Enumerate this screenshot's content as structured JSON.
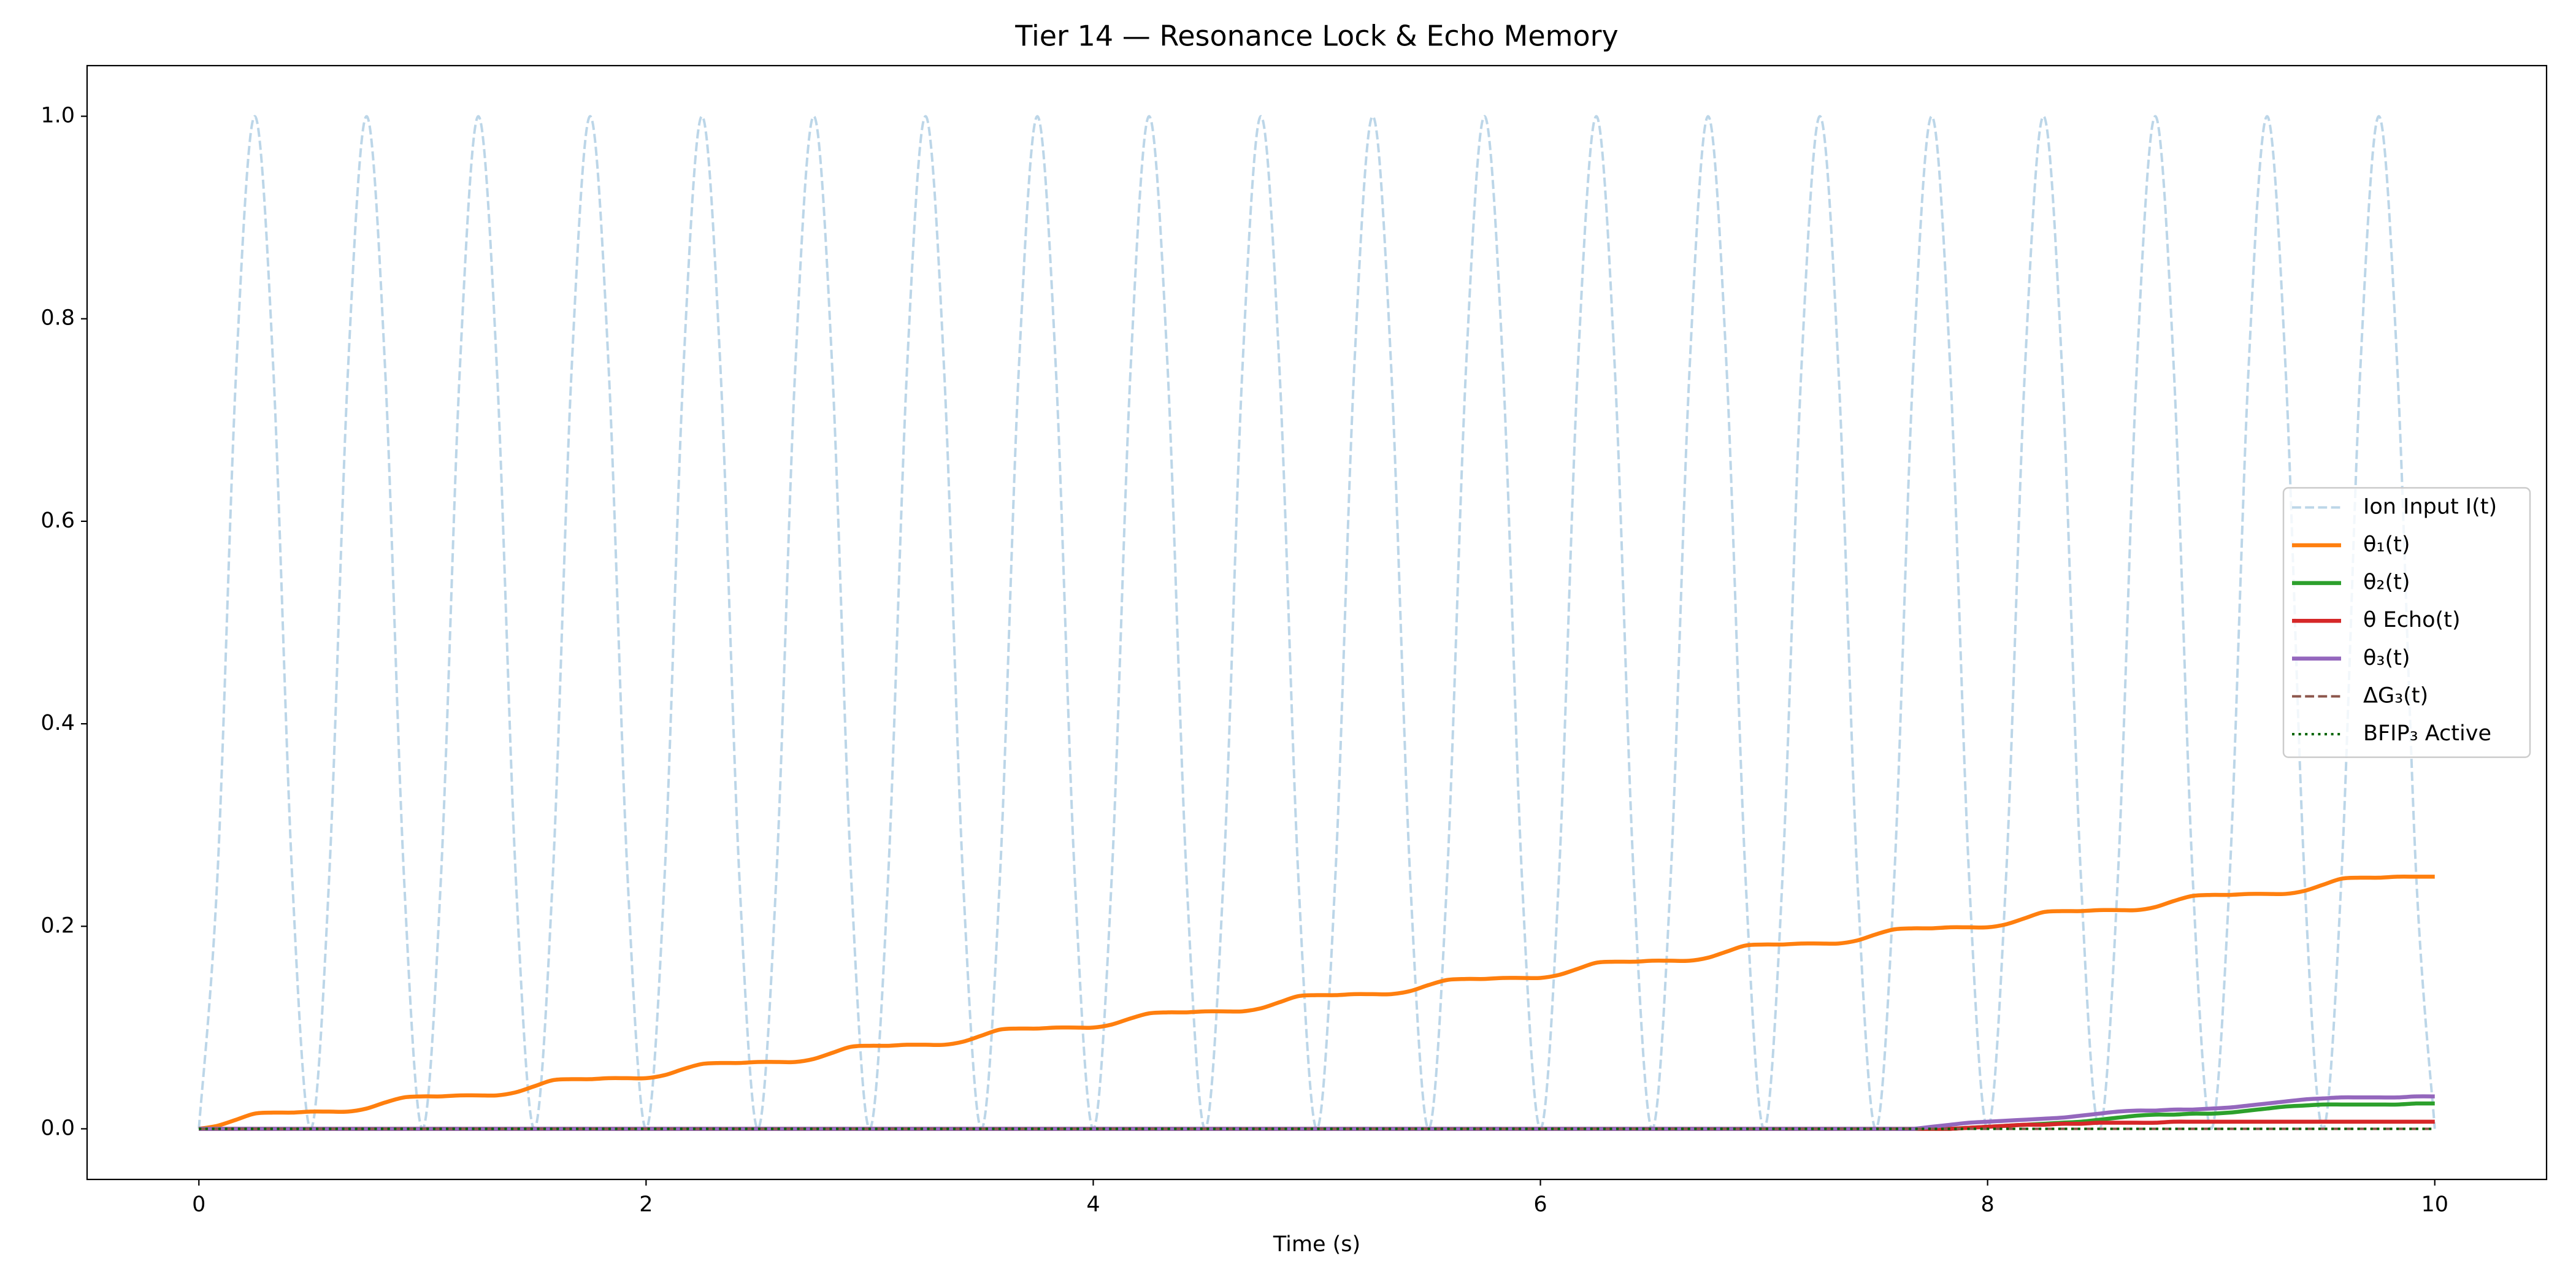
{
  "chart_data": {
    "type": "line",
    "title": "Tier 14 — Resonance Lock & Echo Memory",
    "x_label": "Time (s)",
    "xlim": [
      -0.5,
      10.5
    ],
    "xticks": [
      0,
      2,
      4,
      6,
      8,
      10
    ],
    "ylim": [
      -0.05,
      1.05
    ],
    "yticks": [
      {
        "value": 0,
        "label": "0.0"
      },
      0.2,
      0.4,
      0.6,
      0.8,
      {
        "value": 1,
        "label": "1.0"
      }
    ],
    "grid": false,
    "legend": "center right",
    "x": [
      0,
      0.083,
      0.167,
      0.25,
      0.333,
      0.417,
      0.5,
      0.583,
      0.667,
      0.75,
      0.833,
      0.917,
      1,
      1.083,
      1.167,
      1.25,
      1.333,
      1.417,
      1.5,
      1.583,
      1.667,
      1.75,
      1.833,
      1.917,
      2,
      2.083,
      2.167,
      2.25,
      2.333,
      2.417,
      2.5,
      2.583,
      2.667,
      2.75,
      2.833,
      2.917,
      3,
      3.083,
      3.167,
      3.25,
      3.333,
      3.417,
      3.5,
      3.583,
      3.667,
      3.75,
      3.833,
      3.917,
      4,
      4.083,
      4.167,
      4.25,
      4.333,
      4.417,
      4.5,
      4.583,
      4.667,
      4.75,
      4.833,
      4.917,
      5,
      5.083,
      5.167,
      5.25,
      5.333,
      5.417,
      5.5,
      5.583,
      5.667,
      5.75,
      5.833,
      5.917,
      6,
      6.083,
      6.167,
      6.25,
      6.333,
      6.417,
      6.5,
      6.583,
      6.667,
      6.75,
      6.833,
      6.917,
      7,
      7.083,
      7.167,
      7.25,
      7.333,
      7.417,
      7.5,
      7.583,
      7.667,
      7.75,
      7.833,
      7.917,
      8,
      8.083,
      8.167,
      8.25,
      8.333,
      8.417,
      8.5,
      8.583,
      8.667,
      8.75,
      8.833,
      8.917,
      9,
      9.083,
      9.167,
      9.25,
      9.333,
      9.417,
      9.5,
      9.583,
      9.667,
      9.75,
      9.833,
      9.917,
      10
    ],
    "series": [
      {
        "name": "Ion Input I(t)",
        "color": "#bcd6e8",
        "style": "dashed",
        "width": 4,
        "values": [
          0,
          0.25,
          0.75,
          1,
          0.75,
          0.25,
          0,
          0.25,
          0.75,
          1,
          0.75,
          0.25,
          0,
          0.25,
          0.75,
          1,
          0.75,
          0.25,
          0,
          0.25,
          0.75,
          1,
          0.75,
          0.25,
          0,
          0.25,
          0.75,
          1,
          0.75,
          0.25,
          0,
          0.25,
          0.75,
          1,
          0.75,
          0.25,
          0,
          0.25,
          0.75,
          1,
          0.75,
          0.25,
          0,
          0.25,
          0.75,
          1,
          0.75,
          0.25,
          0,
          0.25,
          0.75,
          1,
          0.75,
          0.25,
          0,
          0.25,
          0.75,
          1,
          0.75,
          0.25,
          0,
          0.25,
          0.75,
          1,
          0.75,
          0.25,
          0,
          0.25,
          0.75,
          1,
          0.75,
          0.25,
          0,
          0.25,
          0.75,
          1,
          0.75,
          0.25,
          0,
          0.25,
          0.75,
          1,
          0.75,
          0.25,
          0,
          0.25,
          0.75,
          1,
          0.75,
          0.25,
          0,
          0.25,
          0.75,
          1,
          0.75,
          0.25,
          0,
          0.25,
          0.75,
          1,
          0.75,
          0.25,
          0,
          0.25,
          0.75,
          1,
          0.75,
          0.25,
          0,
          0.25,
          0.75,
          1,
          0.75,
          0.25,
          0,
          0.25,
          0.75,
          1,
          0.75,
          0.25,
          0
        ]
      },
      {
        "name": "θ₁(t)",
        "color": "#ff7f0e",
        "style": "solid",
        "width": 6.5,
        "values": [
          0,
          0.003,
          0.009,
          0.015,
          0.016,
          0.016,
          0.017,
          0.017,
          0.017,
          0.02,
          0.026,
          0.031,
          0.032,
          0.032,
          0.033,
          0.033,
          0.033,
          0.036,
          0.042,
          0.048,
          0.049,
          0.049,
          0.05,
          0.05,
          0.05,
          0.053,
          0.059,
          0.064,
          0.065,
          0.065,
          0.066,
          0.066,
          0.066,
          0.069,
          0.075,
          0.081,
          0.082,
          0.082,
          0.083,
          0.083,
          0.083,
          0.086,
          0.092,
          0.098,
          0.099,
          0.099,
          0.1,
          0.1,
          0.1,
          0.103,
          0.109,
          0.114,
          0.115,
          0.115,
          0.116,
          0.116,
          0.116,
          0.119,
          0.125,
          0.131,
          0.132,
          0.132,
          0.133,
          0.133,
          0.133,
          0.136,
          0.142,
          0.147,
          0.148,
          0.148,
          0.149,
          0.149,
          0.149,
          0.152,
          0.158,
          0.164,
          0.165,
          0.165,
          0.166,
          0.166,
          0.166,
          0.169,
          0.175,
          0.181,
          0.182,
          0.182,
          0.183,
          0.183,
          0.183,
          0.186,
          0.192,
          0.197,
          0.198,
          0.198,
          0.199,
          0.199,
          0.199,
          0.202,
          0.208,
          0.214,
          0.215,
          0.215,
          0.216,
          0.216,
          0.216,
          0.219,
          0.225,
          0.23,
          0.231,
          0.231,
          0.232,
          0.232,
          0.232,
          0.235,
          0.241,
          0.247,
          0.248,
          0.248,
          0.249,
          0.249,
          0.249
        ]
      },
      {
        "name": "θ₂(t)",
        "color": "#2ca02c",
        "style": "solid",
        "width": 6.5,
        "values": [
          0,
          0,
          0,
          0,
          0,
          0,
          0,
          0,
          0,
          0,
          0,
          0,
          0,
          0,
          0,
          0,
          0,
          0,
          0,
          0,
          0,
          0,
          0,
          0,
          0,
          0,
          0,
          0,
          0,
          0,
          0,
          0,
          0,
          0,
          0,
          0,
          0,
          0,
          0,
          0,
          0,
          0,
          0,
          0,
          0,
          0,
          0,
          0,
          0,
          0,
          0,
          0,
          0,
          0,
          0,
          0,
          0,
          0,
          0,
          0,
          0,
          0,
          0,
          0,
          0,
          0,
          0,
          0,
          0,
          0,
          0,
          0,
          0,
          0,
          0,
          0,
          0,
          0,
          0,
          0,
          0,
          0,
          0,
          0,
          0,
          0,
          0,
          0,
          0,
          0,
          0,
          0,
          0,
          0,
          0,
          0.001,
          0.002,
          0.003,
          0.004,
          0.005,
          0.006,
          0.007,
          0.009,
          0.011,
          0.013,
          0.014,
          0.014,
          0.015,
          0.015,
          0.016,
          0.018,
          0.02,
          0.022,
          0.023,
          0.024,
          0.024,
          0.024,
          0.024,
          0.024,
          0.025,
          0.025
        ]
      },
      {
        "name": "θ Echo(t)",
        "color": "#d62728",
        "style": "solid",
        "width": 6.5,
        "values": [
          0,
          0,
          0,
          0,
          0,
          0,
          0,
          0,
          0,
          0,
          0,
          0,
          0,
          0,
          0,
          0,
          0,
          0,
          0,
          0,
          0,
          0,
          0,
          0,
          0,
          0,
          0,
          0,
          0,
          0,
          0,
          0,
          0,
          0,
          0,
          0,
          0,
          0,
          0,
          0,
          0,
          0,
          0,
          0,
          0,
          0,
          0,
          0,
          0,
          0,
          0,
          0,
          0,
          0,
          0,
          0,
          0,
          0,
          0,
          0,
          0,
          0,
          0,
          0,
          0,
          0,
          0,
          0,
          0,
          0,
          0,
          0,
          0,
          0,
          0,
          0,
          0,
          0,
          0,
          0,
          0,
          0,
          0,
          0,
          0,
          0,
          0,
          0,
          0,
          0,
          0,
          0,
          0,
          0,
          0,
          0.001,
          0.002,
          0.003,
          0.004,
          0.004,
          0.005,
          0.005,
          0.006,
          0.006,
          0.006,
          0.006,
          0.007,
          0.007,
          0.007,
          0.007,
          0.007,
          0.007,
          0.007,
          0.007,
          0.007,
          0.007,
          0.007,
          0.007,
          0.007,
          0.007,
          0.007
        ]
      },
      {
        "name": "θ₃(t)",
        "color": "#9467bd",
        "style": "solid",
        "width": 6.5,
        "values": [
          0,
          0,
          0,
          0,
          0,
          0,
          0,
          0,
          0,
          0,
          0,
          0,
          0,
          0,
          0,
          0,
          0,
          0,
          0,
          0,
          0,
          0,
          0,
          0,
          0,
          0,
          0,
          0,
          0,
          0,
          0,
          0,
          0,
          0,
          0,
          0,
          0,
          0,
          0,
          0,
          0,
          0,
          0,
          0,
          0,
          0,
          0,
          0,
          0,
          0,
          0,
          0,
          0,
          0,
          0,
          0,
          0,
          0,
          0,
          0,
          0,
          0,
          0,
          0,
          0,
          0,
          0,
          0,
          0,
          0,
          0,
          0,
          0,
          0,
          0,
          0,
          0,
          0,
          0,
          0,
          0,
          0,
          0,
          0,
          0,
          0,
          0,
          0,
          0,
          0,
          0,
          0,
          0,
          0.002,
          0.004,
          0.006,
          0.007,
          0.008,
          0.009,
          0.01,
          0.011,
          0.013,
          0.015,
          0.017,
          0.018,
          0.018,
          0.019,
          0.019,
          0.02,
          0.021,
          0.023,
          0.025,
          0.027,
          0.029,
          0.03,
          0.031,
          0.031,
          0.031,
          0.031,
          0.032,
          0.032
        ]
      },
      {
        "name": "ΔG₃(t)",
        "color": "#8c564b",
        "style": "dashed",
        "width": 4,
        "values": [
          0,
          0,
          0,
          0,
          0,
          0,
          0,
          0,
          0,
          0,
          0,
          0,
          0,
          0,
          0,
          0,
          0,
          0,
          0,
          0,
          0,
          0,
          0,
          0,
          0,
          0,
          0,
          0,
          0,
          0,
          0,
          0,
          0,
          0,
          0,
          0,
          0,
          0,
          0,
          0,
          0,
          0,
          0,
          0,
          0,
          0,
          0,
          0,
          0,
          0,
          0,
          0,
          0,
          0,
          0,
          0,
          0,
          0,
          0,
          0,
          0,
          0,
          0,
          0,
          0,
          0,
          0,
          0,
          0,
          0,
          0,
          0,
          0,
          0,
          0,
          0,
          0,
          0,
          0,
          0,
          0,
          0,
          0,
          0,
          0,
          0,
          0,
          0,
          0,
          0,
          0,
          0,
          0,
          0,
          0,
          0,
          0,
          0,
          0,
          0,
          0,
          0,
          0,
          0,
          0,
          0,
          0,
          0,
          0,
          0,
          0,
          0,
          0,
          0,
          0,
          0,
          0,
          0,
          0,
          0,
          0
        ]
      },
      {
        "name": "BFIP₃ Active",
        "color": "#006400",
        "style": "dotted",
        "width": 4,
        "values": [
          0,
          0,
          0,
          0,
          0,
          0,
          0,
          0,
          0,
          0,
          0,
          0,
          0,
          0,
          0,
          0,
          0,
          0,
          0,
          0,
          0,
          0,
          0,
          0,
          0,
          0,
          0,
          0,
          0,
          0,
          0,
          0,
          0,
          0,
          0,
          0,
          0,
          0,
          0,
          0,
          0,
          0,
          0,
          0,
          0,
          0,
          0,
          0,
          0,
          0,
          0,
          0,
          0,
          0,
          0,
          0,
          0,
          0,
          0,
          0,
          0,
          0,
          0,
          0,
          0,
          0,
          0,
          0,
          0,
          0,
          0,
          0,
          0,
          0,
          0,
          0,
          0,
          0,
          0,
          0,
          0,
          0,
          0,
          0,
          0,
          0,
          0,
          0,
          0,
          0,
          0,
          0,
          0,
          0,
          0,
          0,
          0,
          0,
          0,
          0,
          0,
          0,
          0,
          0,
          0,
          0,
          0,
          0,
          0,
          0,
          0,
          0,
          0,
          0,
          0,
          0,
          0,
          0,
          0,
          0,
          0
        ]
      }
    ]
  }
}
